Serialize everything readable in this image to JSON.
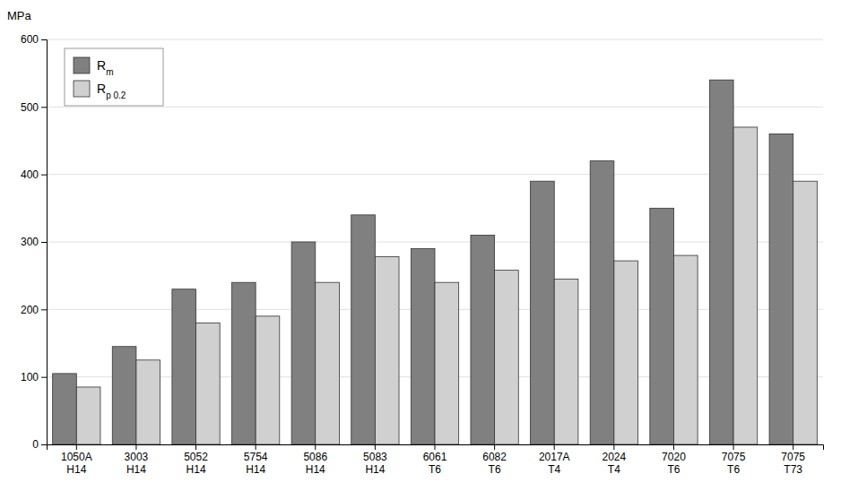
{
  "chart_data": {
    "type": "bar",
    "ylabel": "MPa",
    "categories": [
      "1050A\nH14",
      "3003\nH14",
      "5052\nH14",
      "5754\nH14",
      "5086\nH14",
      "5083\nH14",
      "6061\nT6",
      "6082\nT6",
      "2017A\nT4",
      "2024\nT4",
      "7020\nT6",
      "7075\nT6",
      "7075\nT73"
    ],
    "series": [
      {
        "name": "Rm",
        "color": "#808080",
        "values": [
          105,
          145,
          230,
          240,
          300,
          340,
          290,
          310,
          390,
          420,
          350,
          540,
          460
        ]
      },
      {
        "name": "Rp 0.2",
        "color": "#d0d0d0",
        "values": [
          85,
          125,
          180,
          190,
          240,
          278,
          240,
          258,
          245,
          272,
          280,
          470,
          390
        ]
      }
    ],
    "ylim": [
      0,
      600
    ],
    "yticks": [
      0,
      100,
      200,
      300,
      400,
      500,
      600
    ],
    "grid": true,
    "legend": "upper left"
  }
}
